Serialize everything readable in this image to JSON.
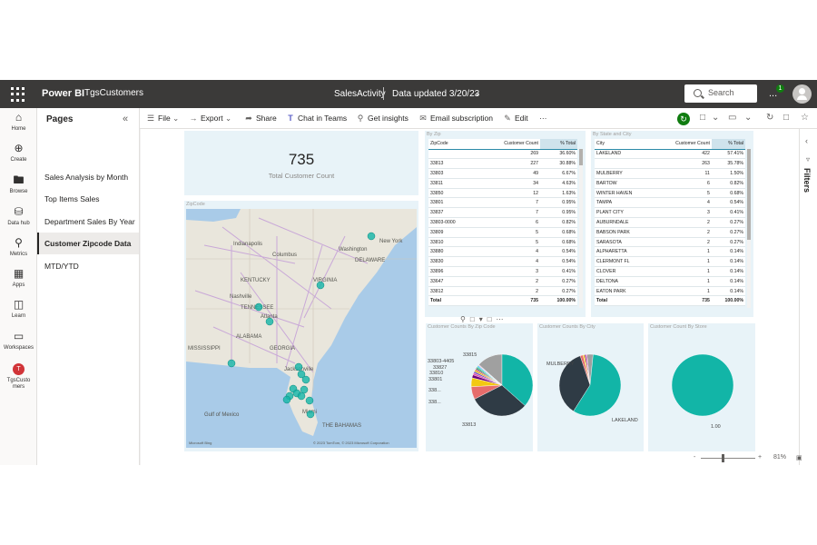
{
  "topbar": {
    "brand": "Power BI",
    "workspace": "TgsCustomers",
    "report_title": "SalesActivity",
    "data_updated": "Data updated 3/20/23",
    "search_placeholder": "Search",
    "more": "...",
    "notification_count": "1"
  },
  "leftnav": {
    "items": [
      {
        "label": "Home",
        "icon": "home-icon"
      },
      {
        "label": "Create",
        "icon": "plus-circle-icon"
      },
      {
        "label": "Browse",
        "icon": "folder-icon"
      },
      {
        "label": "Data hub",
        "icon": "database-icon"
      },
      {
        "label": "Metrics",
        "icon": "trophy-icon"
      },
      {
        "label": "Apps",
        "icon": "apps-icon"
      },
      {
        "label": "Learn",
        "icon": "book-icon"
      },
      {
        "label": "Workspaces",
        "icon": "workspaces-icon"
      },
      {
        "label": "TgsCustomers",
        "icon": "workspace-avatar-icon",
        "initial": "T"
      }
    ]
  },
  "pages": {
    "title": "Pages",
    "items": [
      "Sales Analysis by Month",
      "Top Items Sales",
      "Department Sales By Year",
      "Customer Zipcode Data",
      "MTD/YTD"
    ],
    "active_index": 3
  },
  "toolbar": {
    "file": "File",
    "export": "Export",
    "share": "Share",
    "chat": "Chat in Teams",
    "insights": "Get insights",
    "subscription": "Email subscription",
    "edit": "Edit",
    "more": "···"
  },
  "card": {
    "value": "735",
    "label": "Total Customer Count"
  },
  "map": {
    "title": "ZipCode",
    "labels": [
      "Indianapolis",
      "Columbus",
      "New York",
      "KENTUCKY",
      "VIRGINIA",
      "Nashville",
      "TENNESSEE",
      "ALABAMA",
      "Atlanta",
      "GEORGIA",
      "MISSISSIPPI",
      "Jacksonville",
      "Miami",
      "Gulf of Mexico",
      "THE BAHAMAS",
      "DELAWARE",
      "Washington"
    ],
    "attribution": "© 2023 TomTom, © 2023 Microsoft Corporation",
    "bing": "Microsoft Bing"
  },
  "zip_table": {
    "title": "By Zip",
    "headers": [
      "ZipCode",
      "Customer Count",
      "% Total"
    ],
    "rows": [
      [
        "",
        "269",
        "36.60%"
      ],
      [
        "33813",
        "227",
        "30.88%"
      ],
      [
        "33803",
        "49",
        "6.67%"
      ],
      [
        "33811",
        "34",
        "4.63%"
      ],
      [
        "33850",
        "12",
        "1.63%"
      ],
      [
        "33801",
        "7",
        "0.95%"
      ],
      [
        "33837",
        "7",
        "0.95%"
      ],
      [
        "33803-0000",
        "6",
        "0.82%"
      ],
      [
        "33809",
        "5",
        "0.68%"
      ],
      [
        "33810",
        "5",
        "0.68%"
      ],
      [
        "33880",
        "4",
        "0.54%"
      ],
      [
        "33830",
        "4",
        "0.54%"
      ],
      [
        "33896",
        "3",
        "0.41%"
      ],
      [
        "33647",
        "2",
        "0.27%"
      ],
      [
        "33812",
        "2",
        "0.27%"
      ]
    ],
    "total": [
      "Total",
      "735",
      "100.00%"
    ]
  },
  "city_table": {
    "title": "By State and City",
    "headers": [
      "City",
      "Customer Count",
      "% Total"
    ],
    "rows": [
      [
        "LAKELAND",
        "422",
        "57.41%"
      ],
      [
        "",
        "263",
        "35.78%"
      ],
      [
        "MULBERRY",
        "11",
        "1.50%"
      ],
      [
        "BARTOW",
        "6",
        "0.82%"
      ],
      [
        "WINTER HAVEN",
        "5",
        "0.68%"
      ],
      [
        "TAMPA",
        "4",
        "0.54%"
      ],
      [
        "PLANT CITY",
        "3",
        "0.41%"
      ],
      [
        "AUBURNDALE",
        "2",
        "0.27%"
      ],
      [
        "BABSON PARK",
        "2",
        "0.27%"
      ],
      [
        "SARASOTA",
        "2",
        "0.27%"
      ],
      [
        "ALPHARETTA",
        "1",
        "0.14%"
      ],
      [
        "CLERMONT FL",
        "1",
        "0.14%"
      ],
      [
        "CLOVER",
        "1",
        "0.14%"
      ],
      [
        "DELTONA",
        "1",
        "0.14%"
      ],
      [
        "EATON PARK",
        "1",
        "0.14%"
      ]
    ],
    "total": [
      "Total",
      "735",
      "100.00%"
    ]
  },
  "pie_zip": {
    "title": "Customer Counts By Zip Code",
    "labels": [
      "33815",
      "33803-4405",
      "33827",
      "33810",
      "33801",
      "338...",
      "338...",
      "33813"
    ]
  },
  "pie_city": {
    "title": "Customer Counts By City",
    "labels": [
      "MULBERRY",
      "LAKELAND"
    ]
  },
  "pie_store": {
    "title": "Customer Count By Store",
    "labels": [
      "1.00"
    ]
  },
  "chart_data": [
    {
      "type": "pie",
      "title": "Customer Counts By Zip Code",
      "slices": [
        {
          "label": "",
          "value": 269,
          "color": "#12b5a7"
        },
        {
          "label": "33813",
          "value": 227,
          "color": "#2f3b45"
        },
        {
          "label": "33803",
          "value": 49,
          "color": "#e66c6b"
        },
        {
          "label": "33811",
          "value": 34,
          "color": "#f2c811"
        },
        {
          "label": "33850",
          "value": 12,
          "color": "#6b007b"
        },
        {
          "label": "33801",
          "value": 7,
          "color": "#e044a7"
        },
        {
          "label": "33837",
          "value": 7,
          "color": "#744ec2"
        },
        {
          "label": "33803-0000",
          "value": 6,
          "color": "#d9b300"
        },
        {
          "label": "33809",
          "value": 5,
          "color": "#d64550"
        },
        {
          "label": "33810",
          "value": 5,
          "color": "#197278"
        },
        {
          "label": "33880",
          "value": 4,
          "color": "#1aab40"
        },
        {
          "label": "33830",
          "value": 4,
          "color": "#15c6f4"
        },
        {
          "label": "33896",
          "value": 3,
          "color": "#4092ff"
        },
        {
          "label": "33647",
          "value": 2,
          "color": "#ffa058"
        },
        {
          "label": "33812",
          "value": 2,
          "color": "#be5dc9"
        },
        {
          "label": "other",
          "value": 99,
          "color": "#a0a0a0"
        }
      ]
    },
    {
      "type": "pie",
      "title": "Customer Counts By City",
      "slices": [
        {
          "label": "LAKELAND",
          "value": 422,
          "color": "#12b5a7"
        },
        {
          "label": "",
          "value": 263,
          "color": "#2f3b45"
        },
        {
          "label": "MULBERRY",
          "value": 11,
          "color": "#e66c6b"
        },
        {
          "label": "BARTOW",
          "value": 6,
          "color": "#f2c811"
        },
        {
          "label": "WINTER HAVEN",
          "value": 5,
          "color": "#6b007b"
        },
        {
          "label": "TAMPA",
          "value": 4,
          "color": "#e044a7"
        },
        {
          "label": "other",
          "value": 24,
          "color": "#a0a0a0"
        }
      ]
    },
    {
      "type": "pie",
      "title": "Customer Count By Store",
      "slices": [
        {
          "label": "1.00",
          "value": 735,
          "color": "#12b5a7"
        }
      ]
    }
  ],
  "footer": {
    "zoom_minus": "-",
    "zoom_plus": "+",
    "zoom_level": "81%"
  },
  "filters": {
    "label": "Filters"
  },
  "colors": {
    "accent": "#12b5a7",
    "topbar": "#3b3a39",
    "visual_bg": "#e8f3f8"
  }
}
